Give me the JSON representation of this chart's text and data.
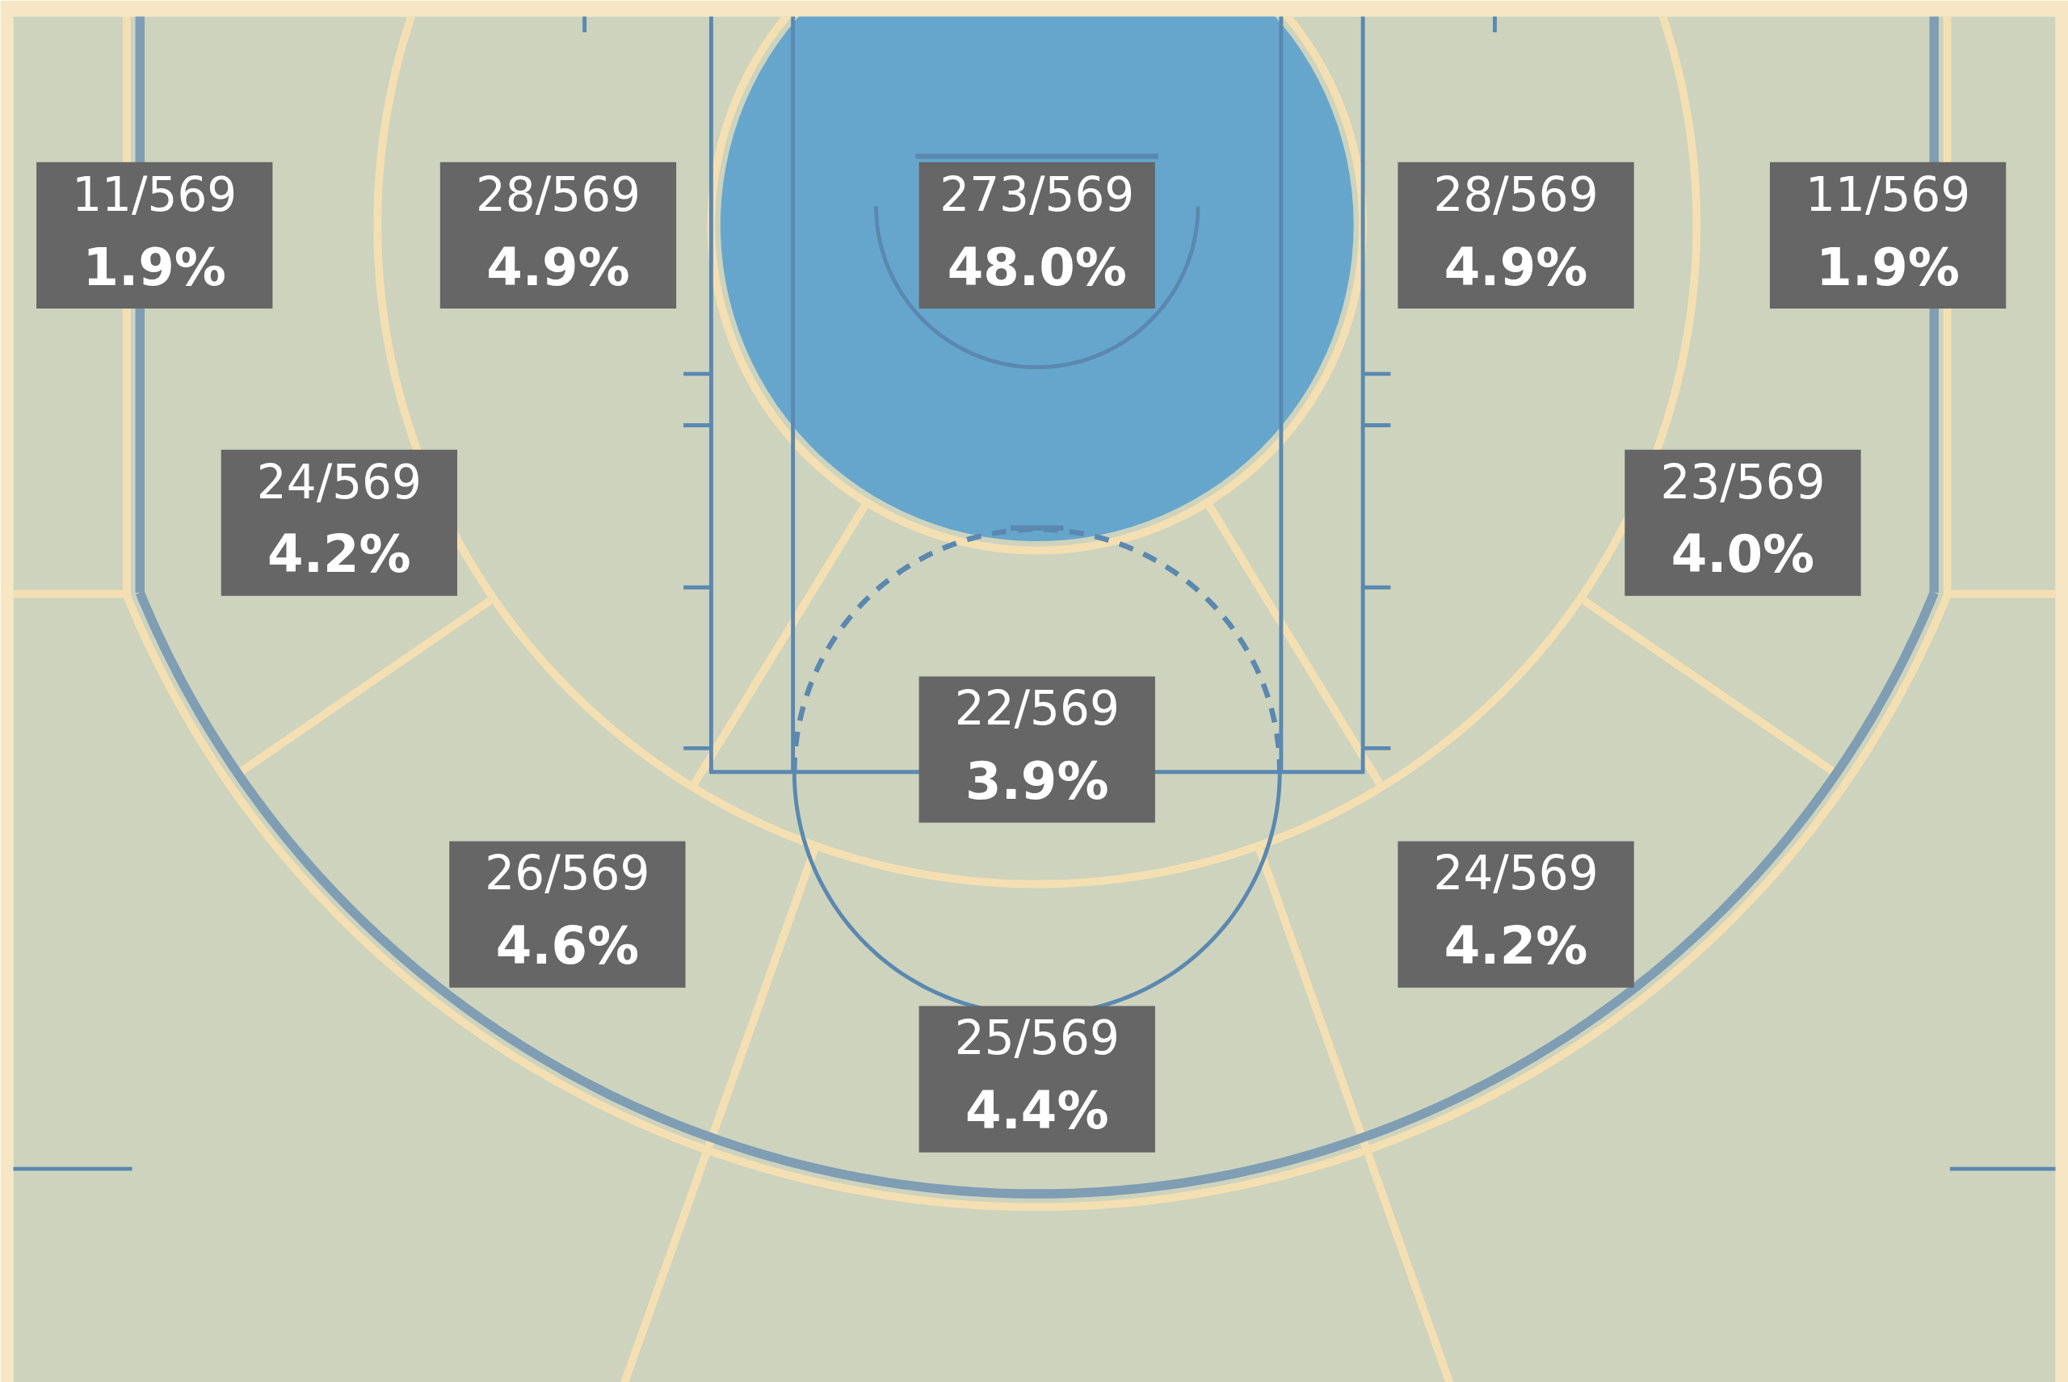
{
  "chart_data": {
    "type": "other",
    "categories": [
      null,
      null,
      null,
      null,
      null,
      null,
      null,
      null,
      null,
      null,
      null
    ],
    "colors": [
      null,
      null,
      "#66a6cc",
      null,
      null,
      null,
      null,
      null,
      null,
      null,
      null
    ],
    "values": [
      1.9,
      4.9,
      48.0,
      4.9,
      1.9,
      4.2,
      4.0,
      3.9,
      4.6,
      4.2,
      4.4
    ],
    "value_labels": [
      "1.9%",
      "4.9%",
      "48.0%",
      "4.9%",
      "1.9%",
      "4.2%",
      "4.0%",
      "3.9%",
      "4.6%",
      "4.2%",
      "4.4%"
    ],
    "annotations": [
      "11/569",
      "28/569",
      "273/569",
      "28/569",
      "11/569",
      "24/569",
      "23/569",
      "22/569",
      "26/569",
      "24/569",
      "25/569"
    ]
  }
}
